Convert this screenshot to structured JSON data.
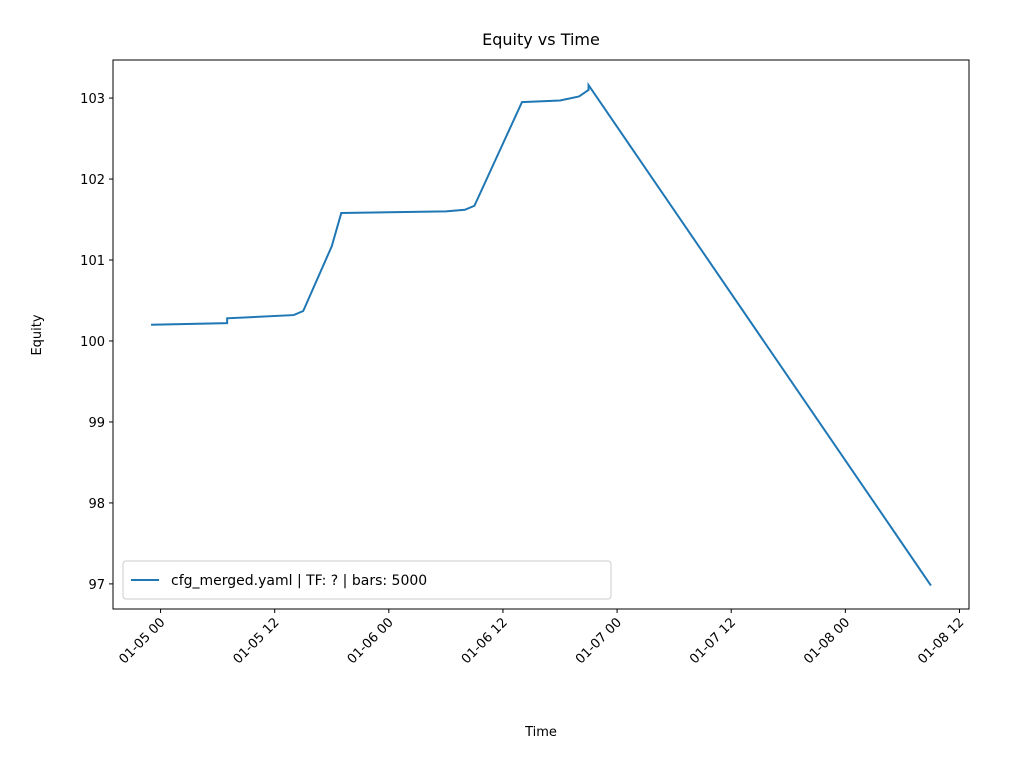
{
  "chart_data": {
    "type": "line",
    "title": "Equity vs Time",
    "x_label": "Time",
    "y_label": "Equity",
    "x": [
      "01-04 23",
      "01-05 07",
      "01-05 07",
      "01-05 14",
      "01-05 15",
      "01-05 18",
      "01-05 19",
      "01-06 06",
      "01-06 08",
      "01-06 09",
      "01-06 14",
      "01-06 18",
      "01-06 20",
      "01-06 21",
      "01-06 21",
      "01-08 09"
    ],
    "series": [
      {
        "name": "cfg_merged.yaml | TF: ? | bars: 5000",
        "color": "#1f77b4",
        "values": [
          100.2,
          100.22,
          100.28,
          100.32,
          100.37,
          101.17,
          101.58,
          101.6,
          101.62,
          101.67,
          102.95,
          102.97,
          103.02,
          103.1,
          103.16,
          96.98
        ]
      }
    ],
    "xlim": [
      "01-04 19",
      "01-08 13"
    ],
    "xticks": [
      "01-05 00",
      "01-05 12",
      "01-06 00",
      "01-06 12",
      "01-07 00",
      "01-07 12",
      "01-08 00",
      "01-08 12"
    ],
    "ylim": [
      96.69,
      103.47
    ],
    "yticks": [
      97,
      98,
      99,
      100,
      101,
      102,
      103
    ],
    "legend": "lower left",
    "grid": false
  }
}
